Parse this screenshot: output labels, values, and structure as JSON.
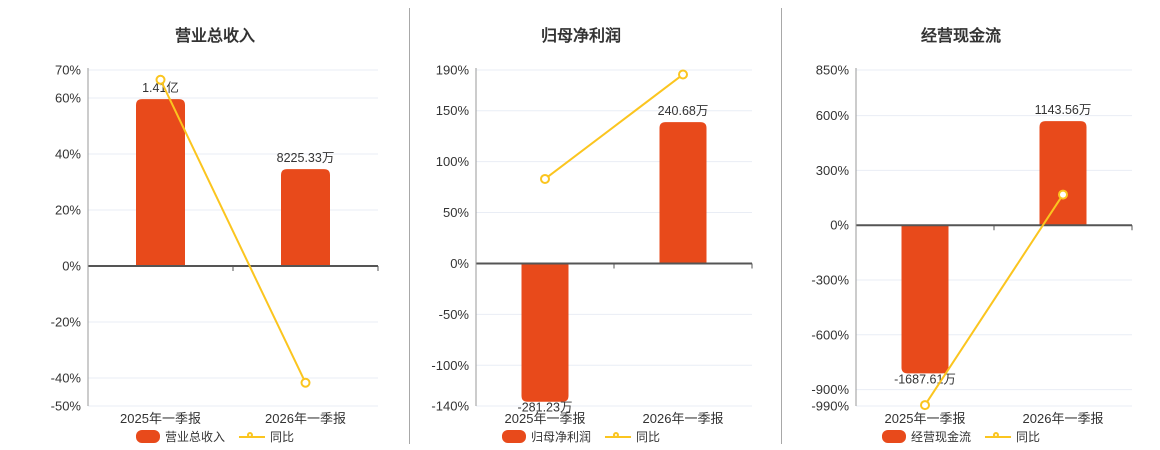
{
  "colors": {
    "bar": "#e84a1b",
    "line": "#fbc51f",
    "marker_fill": "#ffffff",
    "grid_line": "#e9edf5",
    "zero_line": "#555555",
    "y_axis_line": "#999999",
    "text": "#333333",
    "divider": "#a8a8a8",
    "background": "#ffffff"
  },
  "chart_data": [
    {
      "type": "bar",
      "title": "营业总收入",
      "categories": [
        "2025年一季报",
        "2026年一季报"
      ],
      "series": [
        {
          "name": "营业总收入",
          "type": "bar",
          "value_labels": [
            "1.41亿",
            "8225.33万"
          ],
          "display_axis_values": [
            59.6,
            34.6
          ]
        },
        {
          "name": "同比",
          "type": "line",
          "values_pct": [
            66.5,
            -41.7
          ]
        }
      ],
      "ylim": [
        -50,
        70
      ],
      "yticks": [
        70,
        60,
        40,
        20,
        0,
        -20,
        -40,
        -50
      ],
      "ytick_labels": [
        "70%",
        "60%",
        "40%",
        "20%",
        "0%",
        "-20%",
        "-40%",
        "-50%"
      ],
      "legend_position": "bottom",
      "grid": true
    },
    {
      "type": "bar",
      "title": "归母净利润",
      "categories": [
        "2025年一季报",
        "2026年一季报"
      ],
      "series": [
        {
          "name": "归母净利润",
          "type": "bar",
          "value_labels": [
            "-281.23万",
            "240.68万"
          ],
          "display_axis_values": [
            -135.8,
            138.8
          ]
        },
        {
          "name": "同比",
          "type": "line",
          "values_pct": [
            83,
            185.6
          ]
        }
      ],
      "ylim": [
        -140,
        190
      ],
      "yticks": [
        190,
        150,
        100,
        50,
        0,
        -50,
        -100,
        -140
      ],
      "ytick_labels": [
        "190%",
        "150%",
        "100%",
        "50%",
        "0%",
        "-50%",
        "-100%",
        "-140%"
      ],
      "legend_position": "bottom",
      "grid": true
    },
    {
      "type": "bar",
      "title": "经营现金流",
      "categories": [
        "2025年一季报",
        "2026年一季报"
      ],
      "series": [
        {
          "name": "经营现金流",
          "type": "bar",
          "value_labels": [
            "-1687.61万",
            "1143.56万"
          ],
          "display_axis_values": [
            -811,
            570
          ]
        },
        {
          "name": "同比",
          "type": "line",
          "values_pct": [
            -985,
            167.8
          ]
        }
      ],
      "ylim": [
        -990,
        850
      ],
      "yticks": [
        850,
        600,
        300,
        0,
        -300,
        -600,
        -900,
        -990
      ],
      "ytick_labels": [
        "850%",
        "600%",
        "300%",
        "0%",
        "-300%",
        "-600%",
        "-900%",
        "-990%"
      ],
      "legend_position": "bottom",
      "grid": true
    }
  ]
}
